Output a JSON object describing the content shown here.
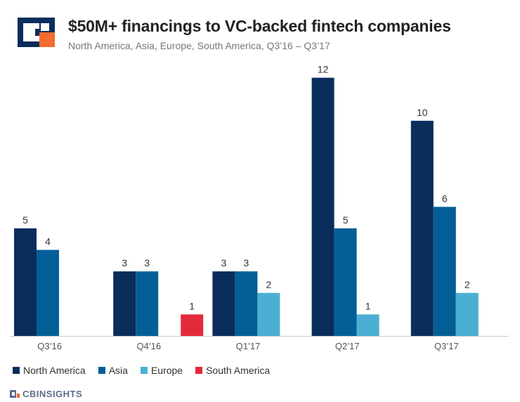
{
  "header": {
    "title": "$50M+ financings to VC-backed fintech companies",
    "subtitle": "North America, Asia, Europe, South America, Q3’16 – Q3’17",
    "logo_icon": "cb-insights-logo-icon"
  },
  "footer": {
    "brand": "CBINSIGHTS",
    "brand_icon": "cb-insights-mark-icon"
  },
  "colors": {
    "north_america": "#0a2d5c",
    "asia": "#045f97",
    "europe": "#4bafd3",
    "south_america": "#e42a39",
    "logo_orange": "#f26b30"
  },
  "chart_data": {
    "type": "bar",
    "title": "$50M+ financings to VC-backed fintech companies",
    "subtitle": "North America, Asia, Europe, South America, Q3’16 – Q3’17",
    "categories": [
      "Q3’16",
      "Q4’16",
      "Q1’17",
      "Q2’17",
      "Q3’17"
    ],
    "series": [
      {
        "name": "North America",
        "values": [
          5,
          3,
          3,
          12,
          10
        ]
      },
      {
        "name": "Asia",
        "values": [
          4,
          3,
          3,
          5,
          6
        ]
      },
      {
        "name": "Europe",
        "values": [
          0,
          0,
          2,
          1,
          2
        ]
      },
      {
        "name": "South America",
        "values": [
          0,
          1,
          0,
          0,
          0
        ]
      }
    ],
    "ylim": [
      0,
      13
    ],
    "grid": false,
    "legend": "bottom-left"
  }
}
